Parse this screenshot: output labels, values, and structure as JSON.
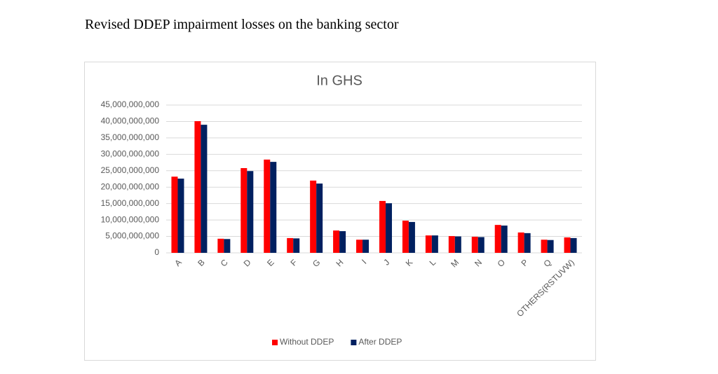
{
  "heading": "Revised DDEP impairment losses on the banking sector",
  "chart_data": {
    "type": "bar",
    "title": "In GHS",
    "categories": [
      "A",
      "B",
      "C",
      "D",
      "E",
      "F",
      "G",
      "H",
      "I",
      "J",
      "K",
      "L",
      "M",
      "N",
      "O",
      "P",
      "Q",
      "OTHERS(RSTUVW)"
    ],
    "series": [
      {
        "name": "Without DDEP",
        "color": "#ff0000",
        "values": [
          23200000000,
          40100000000,
          4300000000,
          25800000000,
          28400000000,
          4500000000,
          22000000000,
          6800000000,
          4000000000,
          15800000000,
          9800000000,
          5300000000,
          5100000000,
          4900000000,
          8500000000,
          6200000000,
          4000000000,
          4700000000
        ]
      },
      {
        "name": "After DDEP",
        "color": "#002060",
        "values": [
          22600000000,
          39000000000,
          4200000000,
          24900000000,
          27700000000,
          4400000000,
          21100000000,
          6600000000,
          4000000000,
          15100000000,
          9400000000,
          5300000000,
          5000000000,
          4800000000,
          8300000000,
          6000000000,
          3900000000,
          4500000000
        ]
      }
    ],
    "ylim": [
      0,
      45000000000
    ],
    "yticks": [
      0,
      {
        "value": 5000000000,
        "label": "5,000,000,000"
      },
      {
        "value": 10000000000,
        "label": "10,000,000,000"
      },
      {
        "value": 15000000000,
        "label": "15,000,000,000"
      },
      {
        "value": 20000000000,
        "label": "20,000,000,000"
      },
      {
        "value": 25000000000,
        "label": "25,000,000,000"
      },
      {
        "value": 30000000000,
        "label": "30,000,000,000"
      },
      {
        "value": 35000000000,
        "label": "35,000,000,000"
      },
      {
        "value": 40000000000,
        "label": "40,000,000,000"
      },
      {
        "value": 45000000000,
        "label": "45,000,000,000"
      }
    ],
    "grid": true,
    "legend": "bottom"
  }
}
